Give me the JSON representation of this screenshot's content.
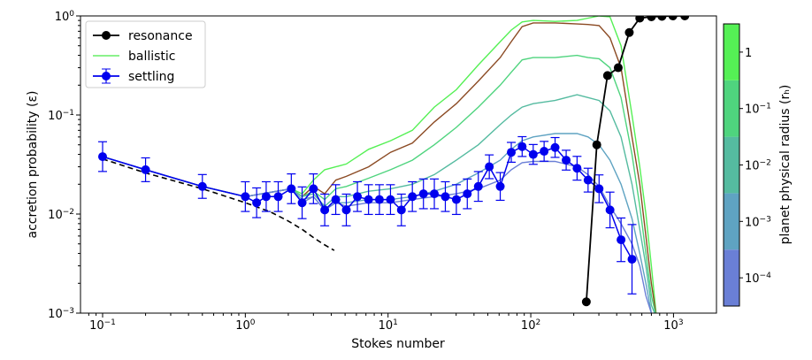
{
  "chart_data": {
    "type": "line",
    "xlabel": "Stokes number",
    "ylabel": "accretion probability (ε)",
    "xscale": "log",
    "yscale": "log",
    "xlim": [
      0.07,
      2000
    ],
    "ylim": [
      0.001,
      1
    ],
    "grid": false,
    "legend_position": "top-left",
    "x_ticks": [
      {
        "value": 0.1,
        "base": "10",
        "exp": "−1"
      },
      {
        "value": 1,
        "base": "10",
        "exp": "0"
      },
      {
        "value": 10,
        "base": "10",
        "exp": "1"
      },
      {
        "value": 100,
        "base": "10",
        "exp": "2"
      },
      {
        "value": 1000,
        "base": "10",
        "exp": "3"
      }
    ],
    "y_ticks": [
      {
        "value": 0.001,
        "base": "10",
        "exp": "−3"
      },
      {
        "value": 0.01,
        "base": "10",
        "exp": "−2"
      },
      {
        "value": 0.1,
        "base": "10",
        "exp": "−1"
      },
      {
        "value": 1,
        "base": "10",
        "exp": "0"
      }
    ],
    "legend": [
      {
        "label": "resonance",
        "color": "#000000",
        "style": "line-marker"
      },
      {
        "label": "ballistic",
        "color": "#66ee66",
        "style": "line"
      },
      {
        "label": "settling",
        "color": "#0000ee",
        "style": "errorbar-marker"
      }
    ],
    "colorbar": {
      "label": "planet physical radius (rₕ)",
      "ticks": [
        {
          "value": 1,
          "base": "1",
          "exp": ""
        },
        {
          "value": 0.1,
          "base": "10",
          "exp": "−1"
        },
        {
          "value": 0.01,
          "base": "10",
          "exp": "−2"
        },
        {
          "value": 0.001,
          "base": "10",
          "exp": "−3"
        },
        {
          "value": 0.0001,
          "base": "10",
          "exp": "−4"
        }
      ],
      "log_range": [
        -4.5,
        0.5
      ],
      "bands": [
        {
          "from": -4.5,
          "to": -3.5,
          "color": "#6a7fd6"
        },
        {
          "from": -3.5,
          "to": -2.5,
          "color": "#5fa3c2"
        },
        {
          "from": -2.5,
          "to": -1.5,
          "color": "#55bba0"
        },
        {
          "from": -1.5,
          "to": -0.5,
          "color": "#4fd47e"
        },
        {
          "from": -0.5,
          "to": 0.5,
          "color": "#55f055"
        }
      ]
    },
    "series": [
      {
        "name": "settling",
        "color": "#0000ee",
        "x": [
          0.1,
          0.2,
          0.5,
          1.0,
          1.2,
          1.4,
          1.7,
          2.1,
          2.5,
          3.0,
          3.6,
          4.3,
          5.1,
          6.1,
          7.3,
          8.7,
          10.4,
          12.4,
          14.8,
          17.7,
          21.1,
          25.2,
          30.1,
          35.9,
          42.9,
          51.2,
          61.1,
          73.0,
          87.0,
          104,
          124,
          148,
          177,
          211,
          252,
          301,
          359,
          429,
          512
        ],
        "y": [
          0.038,
          0.028,
          0.019,
          0.015,
          0.013,
          0.015,
          0.015,
          0.018,
          0.013,
          0.018,
          0.011,
          0.014,
          0.011,
          0.015,
          0.014,
          0.014,
          0.014,
          0.011,
          0.015,
          0.016,
          0.016,
          0.015,
          0.014,
          0.016,
          0.019,
          0.03,
          0.019,
          0.042,
          0.048,
          0.04,
          0.043,
          0.047,
          0.035,
          0.029,
          0.022,
          0.018,
          0.011,
          0.0055,
          0.0035
        ],
        "err": [
          0.15,
          0.12,
          0.12,
          0.15,
          0.15,
          0.15,
          0.15,
          0.15,
          0.16,
          0.15,
          0.16,
          0.15,
          0.16,
          0.15,
          0.15,
          0.15,
          0.15,
          0.16,
          0.15,
          0.15,
          0.15,
          0.15,
          0.15,
          0.15,
          0.15,
          0.12,
          0.14,
          0.1,
          0.1,
          0.1,
          0.1,
          0.1,
          0.1,
          0.12,
          0.12,
          0.14,
          0.18,
          0.22,
          0.35
        ]
      },
      {
        "name": "resonance",
        "color": "#000000",
        "x": [
          245,
          290,
          345,
          410,
          490,
          580,
          700,
          830,
          990,
          1200
        ],
        "y": [
          0.0013,
          0.05,
          0.25,
          0.3,
          0.68,
          0.95,
          0.98,
          0.99,
          1.0,
          1.0
        ]
      },
      {
        "name": "analytic",
        "style": "dashed",
        "color": "#000000",
        "x": [
          0.1,
          0.2,
          0.5,
          1.0,
          1.5,
          2.0,
          2.5,
          3.0,
          3.5,
          4.2
        ],
        "y": [
          0.036,
          0.026,
          0.018,
          0.013,
          0.0105,
          0.0085,
          0.007,
          0.0058,
          0.005,
          0.0043
        ]
      }
    ],
    "radius_curves": {
      "x": [
        0.1,
        0.2,
        0.5,
        1.0,
        2.1,
        2.5,
        3.0,
        3.6,
        4.3,
        5.1,
        7.3,
        10.4,
        14.8,
        21.1,
        30.1,
        42.9,
        61.1,
        73,
        87,
        104,
        148,
        211,
        252,
        301,
        359,
        429,
        512,
        580,
        640,
        700,
        760
      ],
      "curves": [
        {
          "color": "#55f055",
          "y": [
            0.038,
            0.028,
            0.019,
            0.015,
            0.018,
            0.016,
            0.022,
            0.028,
            0.03,
            0.032,
            0.045,
            0.055,
            0.07,
            0.12,
            0.18,
            0.32,
            0.55,
            0.72,
            0.87,
            0.9,
            0.88,
            0.9,
            0.95,
            1.0,
            0.98,
            0.5,
            0.1,
            0.03,
            0.01,
            0.003,
            0.0009
          ]
        },
        {
          "color": "#8b4a23",
          "y": [
            0.038,
            0.028,
            0.019,
            0.015,
            0.018,
            0.015,
            0.019,
            0.016,
            0.022,
            0.024,
            0.03,
            0.042,
            0.052,
            0.085,
            0.13,
            0.22,
            0.38,
            0.55,
            0.78,
            0.85,
            0.85,
            0.83,
            0.82,
            0.8,
            0.6,
            0.3,
            0.06,
            0.02,
            0.006,
            0.002,
            0.0009
          ]
        },
        {
          "color": "#4fd47e",
          "y": [
            0.038,
            0.028,
            0.019,
            0.015,
            0.018,
            0.015,
            0.017,
            0.014,
            0.018,
            0.019,
            0.023,
            0.028,
            0.035,
            0.05,
            0.075,
            0.12,
            0.2,
            0.27,
            0.36,
            0.38,
            0.38,
            0.4,
            0.38,
            0.37,
            0.3,
            0.15,
            0.04,
            0.012,
            0.004,
            0.0015,
            0.0009
          ]
        },
        {
          "color": "#55bba0",
          "y": [
            0.038,
            0.028,
            0.019,
            0.015,
            0.018,
            0.015,
            0.016,
            0.012,
            0.015,
            0.015,
            0.017,
            0.018,
            0.02,
            0.025,
            0.035,
            0.05,
            0.08,
            0.1,
            0.12,
            0.13,
            0.14,
            0.16,
            0.15,
            0.14,
            0.11,
            0.06,
            0.02,
            0.007,
            0.003,
            0.0012,
            0.0009
          ]
        },
        {
          "color": "#5fa3c2",
          "y": [
            0.038,
            0.028,
            0.019,
            0.015,
            0.018,
            0.014,
            0.015,
            0.011,
            0.013,
            0.013,
            0.014,
            0.014,
            0.015,
            0.017,
            0.02,
            0.026,
            0.035,
            0.045,
            0.055,
            0.06,
            0.065,
            0.065,
            0.06,
            0.05,
            0.035,
            0.02,
            0.009,
            0.004,
            0.002,
            0.001,
            0.0009
          ]
        },
        {
          "color": "#6a7fd6",
          "y": [
            0.038,
            0.028,
            0.019,
            0.015,
            0.018,
            0.013,
            0.015,
            0.011,
            0.013,
            0.012,
            0.013,
            0.013,
            0.014,
            0.015,
            0.016,
            0.018,
            0.022,
            0.028,
            0.033,
            0.034,
            0.034,
            0.03,
            0.025,
            0.019,
            0.012,
            0.008,
            0.005,
            0.003,
            0.0015,
            0.001,
            0.0009
          ]
        }
      ]
    }
  }
}
